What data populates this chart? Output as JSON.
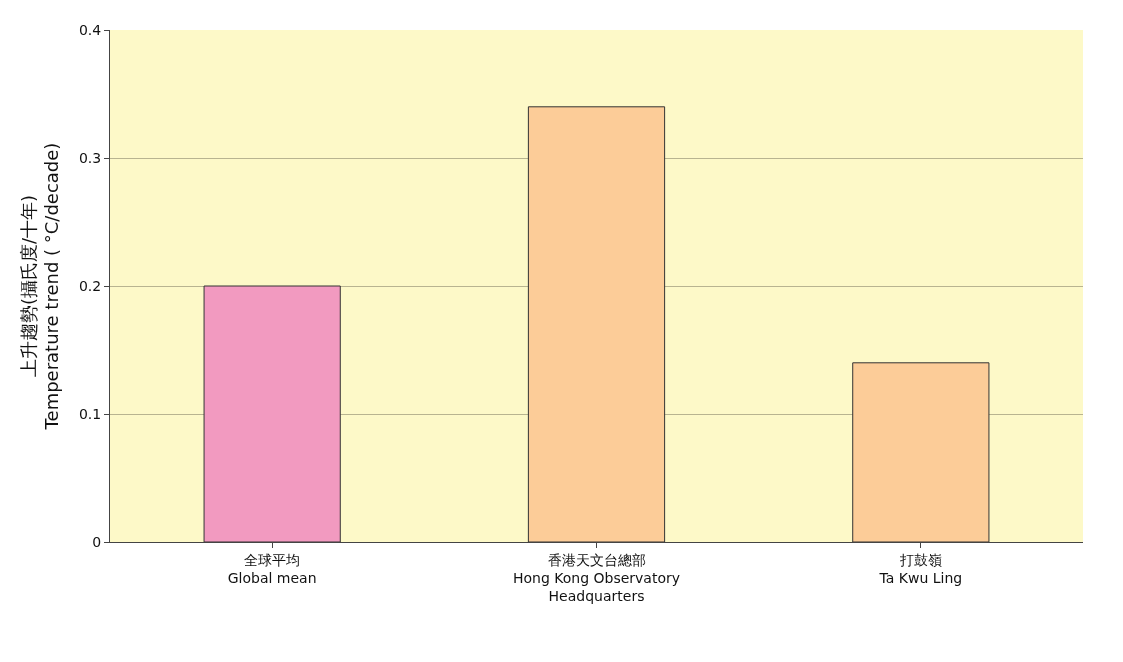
{
  "chart_data": {
    "type": "bar",
    "categories": [
      "全球平均\nGlobal mean",
      "香港天文台總部\nHong Kong Observatory\nHeadquarters",
      "打鼓嶺\nTa Kwu Ling"
    ],
    "values": [
      0.2,
      0.34,
      0.14
    ],
    "colors": [
      "#f29ac0",
      "#fccc98",
      "#fccc98"
    ],
    "ylabel": "上升趨勢(攝氏度/十年)\nTemperature trend ( °C/decade)",
    "ylim": [
      0,
      0.4
    ],
    "yticks": [
      0,
      0.1,
      0.2,
      0.3,
      0.4
    ],
    "grid": "y"
  }
}
